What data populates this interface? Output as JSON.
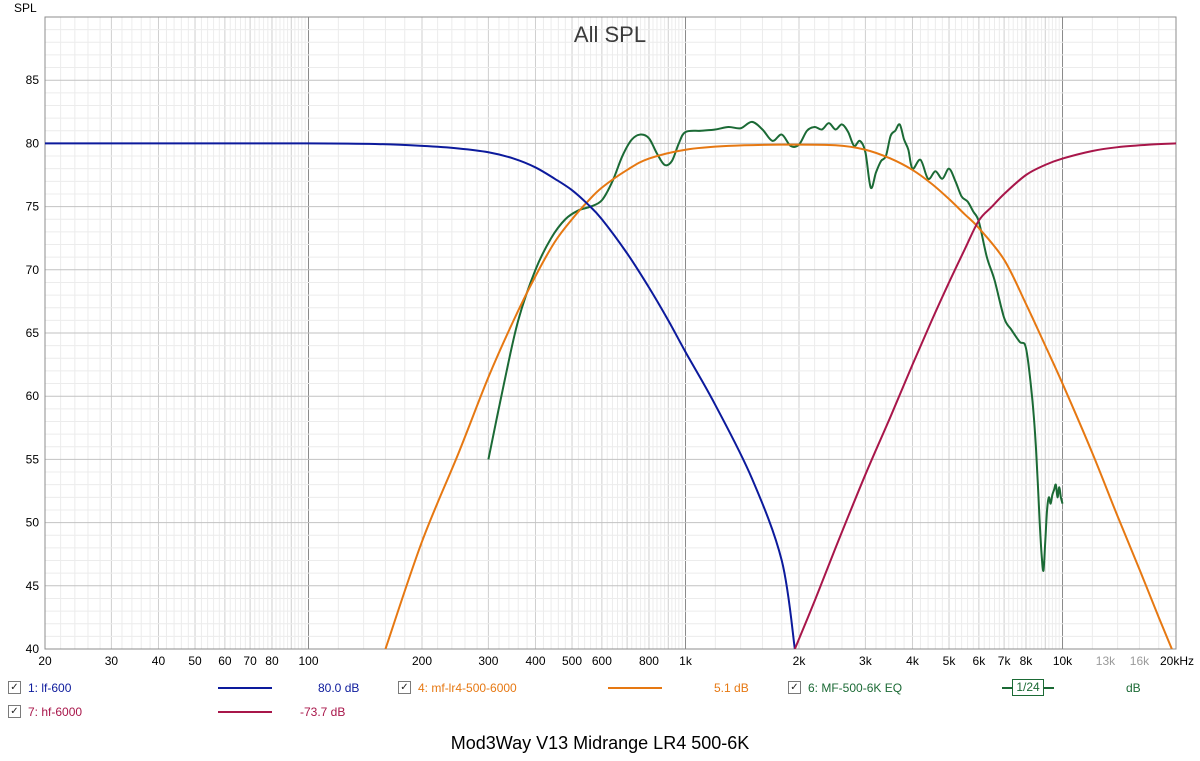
{
  "window": {
    "footer_title": "Mod3Way V13 Midrange LR4 500-6K"
  },
  "chart_data": {
    "type": "line",
    "title": "All SPL",
    "ylabel": "SPL",
    "xlabel": "",
    "x_scale": "log",
    "xlim": [
      20,
      20000
    ],
    "ylim": [
      40,
      90
    ],
    "grid": true,
    "y_ticks": [
      85,
      80,
      75,
      70,
      65,
      60,
      55,
      50,
      45,
      40
    ],
    "x_ticks": [
      {
        "v": 20,
        "label": "20"
      },
      {
        "v": 30,
        "label": "30"
      },
      {
        "v": 40,
        "label": "40"
      },
      {
        "v": 50,
        "label": "50"
      },
      {
        "v": 60,
        "label": "60"
      },
      {
        "v": 70,
        "label": "70"
      },
      {
        "v": 80,
        "label": "80"
      },
      {
        "v": 100,
        "label": "100"
      },
      {
        "v": 200,
        "label": "200"
      },
      {
        "v": 300,
        "label": "300"
      },
      {
        "v": 400,
        "label": "400"
      },
      {
        "v": 500,
        "label": "500"
      },
      {
        "v": 600,
        "label": "600"
      },
      {
        "v": 800,
        "label": "800"
      },
      {
        "v": 1000,
        "label": "1k"
      },
      {
        "v": 2000,
        "label": "2k"
      },
      {
        "v": 3000,
        "label": "3k"
      },
      {
        "v": 4000,
        "label": "4k"
      },
      {
        "v": 5000,
        "label": "5k"
      },
      {
        "v": 6000,
        "label": "6k"
      },
      {
        "v": 7000,
        "label": "7k"
      },
      {
        "v": 8000,
        "label": "8k"
      },
      {
        "v": 10000,
        "label": "10k"
      },
      {
        "v": 13000,
        "label": "13k",
        "dim": true
      },
      {
        "v": 16000,
        "label": "16k",
        "dim": true
      },
      {
        "v": 20000,
        "label": "20kHz"
      }
    ],
    "series": [
      {
        "name": "lf-600",
        "color": "#0c1a9c",
        "x": [
          20,
          50,
          100,
          150,
          200,
          250,
          300,
          350,
          400,
          450,
          500,
          550,
          600,
          700,
          800,
          900,
          1000,
          1200,
          1500,
          1800,
          1950
        ],
        "y": [
          80,
          80,
          80,
          79.95,
          79.8,
          79.6,
          79.3,
          78.8,
          78.1,
          77.2,
          76.3,
          75.2,
          74.0,
          71.3,
          68.6,
          66.0,
          63.5,
          59.3,
          53.5,
          47.0,
          40
        ]
      },
      {
        "name": "mf-lr4-500-6000",
        "color": "#e67812",
        "x": [
          160,
          200,
          250,
          300,
          350,
          400,
          450,
          500,
          550,
          600,
          700,
          800,
          1000,
          1300,
          1800,
          2500,
          3000,
          3500,
          4000,
          4500,
          5000,
          5500,
          6000,
          7000,
          8000,
          9000,
          10000,
          12000,
          14000,
          16000,
          18000,
          19500
        ],
        "y": [
          40,
          48.5,
          55.5,
          61.5,
          66.0,
          69.5,
          72.2,
          74.0,
          75.4,
          76.5,
          77.9,
          78.8,
          79.5,
          79.8,
          79.9,
          79.85,
          79.5,
          78.8,
          77.9,
          76.8,
          75.6,
          74.4,
          73.3,
          70.8,
          67.3,
          64.0,
          61.0,
          55.5,
          50.5,
          46.3,
          42.5,
          40
        ]
      },
      {
        "name": "MF-500-6K EQ",
        "color": "#1b6a35",
        "smoothing": "1/24",
        "x": [
          300,
          330,
          360,
          400,
          440,
          480,
          520,
          560,
          600,
          640,
          680,
          720,
          760,
          800,
          840,
          880,
          920,
          960,
          1000,
          1100,
          1200,
          1300,
          1400,
          1500,
          1600,
          1700,
          1800,
          1900,
          2000,
          2100,
          2200,
          2300,
          2400,
          2500,
          2600,
          2700,
          2800,
          2900,
          3000,
          3100,
          3200,
          3300,
          3400,
          3500,
          3600,
          3700,
          3800,
          3900,
          4000,
          4200,
          4400,
          4600,
          4800,
          5000,
          5200,
          5400,
          5600,
          5800,
          6000,
          6300,
          6600,
          7000,
          7300,
          7700,
          8000,
          8300,
          8500,
          8700,
          8800,
          8900,
          9000,
          9100,
          9200,
          9300,
          9400,
          9500,
          9600,
          9700,
          9800,
          9900,
          10000
        ],
        "y": [
          55,
          61,
          66,
          70,
          72.5,
          74.0,
          74.7,
          75.0,
          75.5,
          77.0,
          79.0,
          80.3,
          80.7,
          80.4,
          79.2,
          78.3,
          78.6,
          80.0,
          80.9,
          81.0,
          81.1,
          81.3,
          81.2,
          81.7,
          81.1,
          80.2,
          80.7,
          79.8,
          79.9,
          81.0,
          81.3,
          81.1,
          81.6,
          81.1,
          81.5,
          80.9,
          79.8,
          80.2,
          79.3,
          76.5,
          77.7,
          78.6,
          79.0,
          80.6,
          81.0,
          81.5,
          80.3,
          79.5,
          78.0,
          78.7,
          77.2,
          77.8,
          77.2,
          78.0,
          77.0,
          75.8,
          75.4,
          74.6,
          73.8,
          71.0,
          69.2,
          66.2,
          65.3,
          64.3,
          63.8,
          60.0,
          56.0,
          50.0,
          47.5,
          46.2,
          48.5,
          51.0,
          52.0,
          51.5,
          52.2,
          52.6,
          53.0,
          52.0,
          52.8,
          52.0,
          51.5
        ]
      },
      {
        "name": "hf-6000",
        "color": "#a8164a",
        "x": [
          1950,
          2200,
          2500,
          3000,
          3500,
          4000,
          4500,
          5000,
          5500,
          6000,
          6500,
          7000,
          8000,
          9000,
          10000,
          12000,
          14000,
          17000,
          20000
        ],
        "y": [
          40,
          43.8,
          48.0,
          53.8,
          58.4,
          62.5,
          66.0,
          69.0,
          71.6,
          73.9,
          75.0,
          76.0,
          77.5,
          78.3,
          78.8,
          79.4,
          79.7,
          79.9,
          80.0
        ]
      }
    ]
  },
  "legend": [
    {
      "index": "1:",
      "name": "lf-600",
      "value": "80.0 dB",
      "color": "#0c1a9c",
      "checked": "✓"
    },
    {
      "index": "4:",
      "name": "mf-lr4-500-6000",
      "value": "5.1 dB",
      "color": "#e67812",
      "checked": "✓"
    },
    {
      "index": "6:",
      "name": "MF-500-6K EQ",
      "value": "dB",
      "color": "#1b6a35",
      "checked": "✓",
      "smoothing": "1/24"
    },
    {
      "index": "7:",
      "name": "hf-6000",
      "value": "-73.7 dB",
      "color": "#a8164a",
      "checked": "✓"
    }
  ]
}
